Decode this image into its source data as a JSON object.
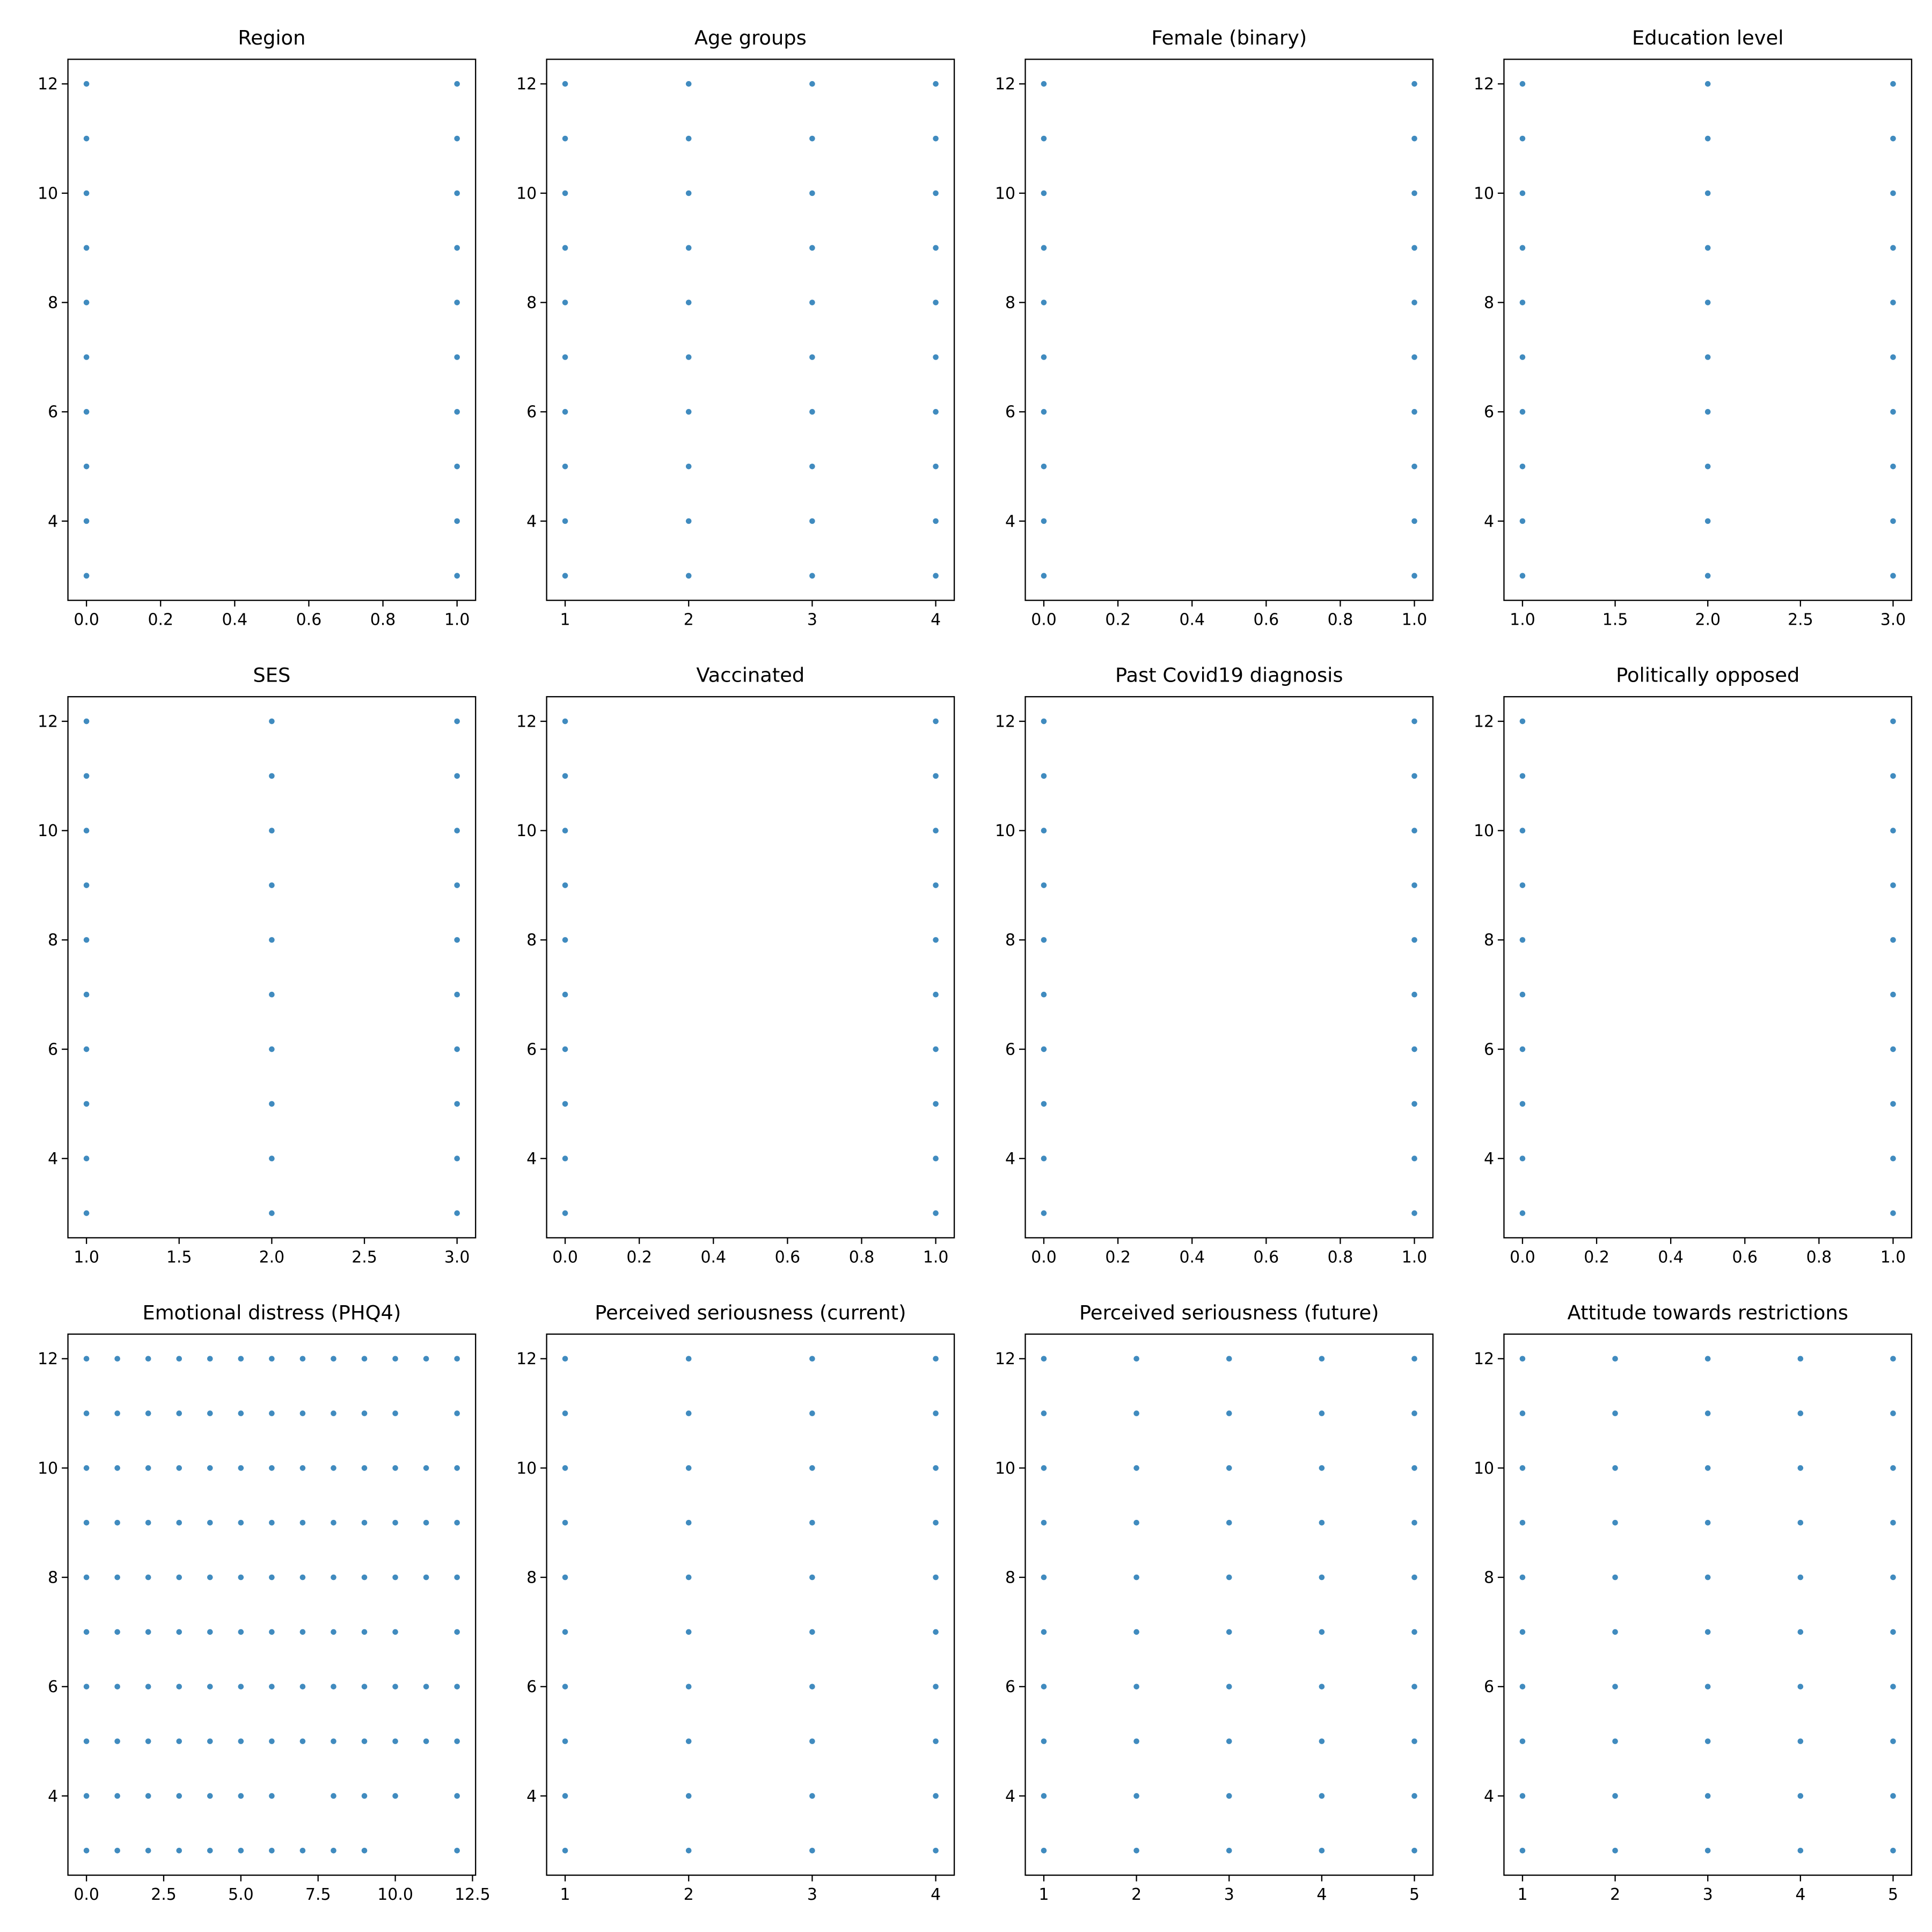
{
  "chart_data": [
    {
      "type": "scatter",
      "title": "Region",
      "color": "#1f77b4",
      "x": [
        0,
        0,
        0,
        0,
        0,
        0,
        0,
        0,
        0,
        0,
        1,
        1,
        1,
        1,
        1,
        1,
        1,
        1,
        1,
        1
      ],
      "y": [
        3,
        4,
        5,
        6,
        7,
        8,
        9,
        10,
        11,
        12,
        3,
        4,
        5,
        6,
        7,
        8,
        9,
        10,
        11,
        12
      ],
      "xlim": [
        -0.05,
        1.05
      ],
      "xticks": [
        {
          "value": 0,
          "label": "0.0"
        },
        {
          "value": 0.2,
          "label": "0.2"
        },
        {
          "value": 0.4,
          "label": "0.4"
        },
        {
          "value": 0.6,
          "label": "0.6"
        },
        {
          "value": 0.8,
          "label": "0.8"
        },
        {
          "value": 1,
          "label": "1.0"
        }
      ],
      "ylim": [
        2.55,
        12.45
      ],
      "yticks": [
        4,
        6,
        8,
        10,
        12
      ]
    },
    {
      "type": "scatter",
      "title": "Age groups",
      "color": "#1f77b4",
      "x": [
        1,
        1,
        1,
        1,
        1,
        1,
        1,
        1,
        1,
        1,
        2,
        2,
        2,
        2,
        2,
        2,
        2,
        2,
        2,
        2,
        3,
        3,
        3,
        3,
        3,
        3,
        3,
        3,
        3,
        3,
        4,
        4,
        4,
        4,
        4,
        4,
        4,
        4,
        4,
        4
      ],
      "y": [
        3,
        4,
        5,
        6,
        7,
        8,
        9,
        10,
        11,
        12,
        3,
        4,
        5,
        6,
        7,
        8,
        9,
        10,
        11,
        12,
        3,
        4,
        5,
        6,
        7,
        8,
        9,
        10,
        11,
        12,
        3,
        4,
        5,
        6,
        7,
        8,
        9,
        10,
        11,
        12
      ],
      "xlim": [
        0.85,
        4.15
      ],
      "xticks": [
        1,
        2,
        3,
        4
      ],
      "ylim": [
        2.55,
        12.45
      ],
      "yticks": [
        4,
        6,
        8,
        10,
        12
      ]
    },
    {
      "type": "scatter",
      "title": "Female (binary)",
      "color": "#1f77b4",
      "x": [
        0,
        0,
        0,
        0,
        0,
        0,
        0,
        0,
        0,
        0,
        1,
        1,
        1,
        1,
        1,
        1,
        1,
        1,
        1,
        1
      ],
      "y": [
        3,
        4,
        5,
        6,
        7,
        8,
        9,
        10,
        11,
        12,
        3,
        4,
        5,
        6,
        7,
        8,
        9,
        10,
        11,
        12
      ],
      "xlim": [
        -0.05,
        1.05
      ],
      "xticks": [
        {
          "value": 0,
          "label": "0.0"
        },
        {
          "value": 0.2,
          "label": "0.2"
        },
        {
          "value": 0.4,
          "label": "0.4"
        },
        {
          "value": 0.6,
          "label": "0.6"
        },
        {
          "value": 0.8,
          "label": "0.8"
        },
        {
          "value": 1,
          "label": "1.0"
        }
      ],
      "ylim": [
        2.55,
        12.45
      ],
      "yticks": [
        4,
        6,
        8,
        10,
        12
      ]
    },
    {
      "type": "scatter",
      "title": "Education level",
      "color": "#1f77b4",
      "x": [
        1,
        1,
        1,
        1,
        1,
        1,
        1,
        1,
        1,
        1,
        2,
        2,
        2,
        2,
        2,
        2,
        2,
        2,
        2,
        2,
        3,
        3,
        3,
        3,
        3,
        3,
        3,
        3,
        3,
        3
      ],
      "y": [
        3,
        4,
        5,
        6,
        7,
        8,
        9,
        10,
        11,
        12,
        3,
        4,
        5,
        6,
        7,
        8,
        9,
        10,
        11,
        12,
        3,
        4,
        5,
        6,
        7,
        8,
        9,
        10,
        11,
        12
      ],
      "xlim": [
        0.9,
        3.1
      ],
      "xticks": [
        {
          "value": 1,
          "label": "1.0"
        },
        {
          "value": 1.5,
          "label": "1.5"
        },
        {
          "value": 2,
          "label": "2.0"
        },
        {
          "value": 2.5,
          "label": "2.5"
        },
        {
          "value": 3,
          "label": "3.0"
        }
      ],
      "ylim": [
        2.55,
        12.45
      ],
      "yticks": [
        4,
        6,
        8,
        10,
        12
      ]
    },
    {
      "type": "scatter",
      "title": "SES",
      "color": "#1f77b4",
      "x": [
        1,
        1,
        1,
        1,
        1,
        1,
        1,
        1,
        1,
        1,
        2,
        2,
        2,
        2,
        2,
        2,
        2,
        2,
        2,
        2,
        3,
        3,
        3,
        3,
        3,
        3,
        3,
        3,
        3,
        3
      ],
      "y": [
        3,
        4,
        5,
        6,
        7,
        8,
        9,
        10,
        11,
        12,
        3,
        4,
        5,
        6,
        7,
        8,
        9,
        10,
        11,
        12,
        3,
        4,
        5,
        6,
        7,
        8,
        9,
        10,
        11,
        12
      ],
      "xlim": [
        0.9,
        3.1
      ],
      "xticks": [
        {
          "value": 1,
          "label": "1.0"
        },
        {
          "value": 1.5,
          "label": "1.5"
        },
        {
          "value": 2,
          "label": "2.0"
        },
        {
          "value": 2.5,
          "label": "2.5"
        },
        {
          "value": 3,
          "label": "3.0"
        }
      ],
      "ylim": [
        2.55,
        12.45
      ],
      "yticks": [
        4,
        6,
        8,
        10,
        12
      ]
    },
    {
      "type": "scatter",
      "title": "Vaccinated",
      "color": "#1f77b4",
      "x": [
        0,
        0,
        0,
        0,
        0,
        0,
        0,
        0,
        0,
        0,
        1,
        1,
        1,
        1,
        1,
        1,
        1,
        1,
        1,
        1
      ],
      "y": [
        3,
        4,
        5,
        6,
        7,
        8,
        9,
        10,
        11,
        12,
        3,
        4,
        5,
        6,
        7,
        8,
        9,
        10,
        11,
        12
      ],
      "xlim": [
        -0.05,
        1.05
      ],
      "xticks": [
        {
          "value": 0,
          "label": "0.0"
        },
        {
          "value": 0.2,
          "label": "0.2"
        },
        {
          "value": 0.4,
          "label": "0.4"
        },
        {
          "value": 0.6,
          "label": "0.6"
        },
        {
          "value": 0.8,
          "label": "0.8"
        },
        {
          "value": 1,
          "label": "1.0"
        }
      ],
      "ylim": [
        2.55,
        12.45
      ],
      "yticks": [
        4,
        6,
        8,
        10,
        12
      ]
    },
    {
      "type": "scatter",
      "title": "Past Covid19 diagnosis",
      "color": "#1f77b4",
      "x": [
        0,
        0,
        0,
        0,
        0,
        0,
        0,
        0,
        0,
        0,
        1,
        1,
        1,
        1,
        1,
        1,
        1,
        1,
        1,
        1
      ],
      "y": [
        3,
        4,
        5,
        6,
        7,
        8,
        9,
        10,
        11,
        12,
        3,
        4,
        5,
        6,
        7,
        8,
        9,
        10,
        11,
        12
      ],
      "xlim": [
        -0.05,
        1.05
      ],
      "xticks": [
        {
          "value": 0,
          "label": "0.0"
        },
        {
          "value": 0.2,
          "label": "0.2"
        },
        {
          "value": 0.4,
          "label": "0.4"
        },
        {
          "value": 0.6,
          "label": "0.6"
        },
        {
          "value": 0.8,
          "label": "0.8"
        },
        {
          "value": 1,
          "label": "1.0"
        }
      ],
      "ylim": [
        2.55,
        12.45
      ],
      "yticks": [
        4,
        6,
        8,
        10,
        12
      ]
    },
    {
      "type": "scatter",
      "title": "Politically opposed",
      "color": "#1f77b4",
      "x": [
        0,
        0,
        0,
        0,
        0,
        0,
        0,
        0,
        0,
        0,
        1,
        1,
        1,
        1,
        1,
        1,
        1,
        1,
        1,
        1
      ],
      "y": [
        3,
        4,
        5,
        6,
        7,
        8,
        9,
        10,
        11,
        12,
        3,
        4,
        5,
        6,
        7,
        8,
        9,
        10,
        11,
        12
      ],
      "xlim": [
        -0.05,
        1.05
      ],
      "xticks": [
        {
          "value": 0,
          "label": "0.0"
        },
        {
          "value": 0.2,
          "label": "0.2"
        },
        {
          "value": 0.4,
          "label": "0.4"
        },
        {
          "value": 0.6,
          "label": "0.6"
        },
        {
          "value": 0.8,
          "label": "0.8"
        },
        {
          "value": 1,
          "label": "1.0"
        }
      ],
      "ylim": [
        2.55,
        12.45
      ],
      "yticks": [
        4,
        6,
        8,
        10,
        12
      ]
    },
    {
      "type": "scatter",
      "title": "Emotional distress (PHQ4)",
      "color": "#1f77b4",
      "x": [
        0,
        1,
        2,
        3,
        4,
        5,
        6,
        7,
        8,
        9,
        12,
        0,
        1,
        2,
        3,
        4,
        5,
        6,
        8,
        9,
        10,
        12,
        0,
        1,
        2,
        3,
        4,
        5,
        6,
        7,
        8,
        9,
        10,
        11,
        12,
        0,
        1,
        2,
        3,
        4,
        5,
        6,
        7,
        8,
        9,
        10,
        11,
        12,
        0,
        1,
        2,
        3,
        4,
        5,
        6,
        7,
        8,
        9,
        10,
        12,
        0,
        1,
        2,
        3,
        4,
        5,
        6,
        7,
        8,
        9,
        10,
        11,
        12,
        0,
        1,
        2,
        3,
        4,
        5,
        6,
        7,
        8,
        9,
        10,
        11,
        12,
        0,
        1,
        2,
        3,
        4,
        5,
        6,
        7,
        8,
        9,
        10,
        11,
        12,
        0,
        1,
        2,
        3,
        4,
        5,
        6,
        7,
        8,
        9,
        10,
        12,
        0,
        1,
        2,
        3,
        4,
        5,
        6,
        7,
        8,
        9,
        10,
        11,
        12
      ],
      "y": [
        3,
        3,
        3,
        3,
        3,
        3,
        3,
        3,
        3,
        3,
        3,
        4,
        4,
        4,
        4,
        4,
        4,
        4,
        4,
        4,
        4,
        4,
        5,
        5,
        5,
        5,
        5,
        5,
        5,
        5,
        5,
        5,
        5,
        5,
        5,
        6,
        6,
        6,
        6,
        6,
        6,
        6,
        6,
        6,
        6,
        6,
        6,
        6,
        7,
        7,
        7,
        7,
        7,
        7,
        7,
        7,
        7,
        7,
        7,
        7,
        8,
        8,
        8,
        8,
        8,
        8,
        8,
        8,
        8,
        8,
        8,
        8,
        8,
        9,
        9,
        9,
        9,
        9,
        9,
        9,
        9,
        9,
        9,
        9,
        9,
        9,
        10,
        10,
        10,
        10,
        10,
        10,
        10,
        10,
        10,
        10,
        10,
        10,
        10,
        11,
        11,
        11,
        11,
        11,
        11,
        11,
        11,
        11,
        11,
        11,
        11,
        12,
        12,
        12,
        12,
        12,
        12,
        12,
        12,
        12,
        12,
        12,
        12,
        12
      ],
      "xlim": [
        -0.6,
        12.6
      ],
      "xticks": [
        {
          "value": 0,
          "label": "0.0"
        },
        {
          "value": 2.5,
          "label": "2.5"
        },
        {
          "value": 5,
          "label": "5.0"
        },
        {
          "value": 7.5,
          "label": "7.5"
        },
        {
          "value": 10,
          "label": "10.0"
        },
        {
          "value": 12.5,
          "label": "12.5"
        }
      ],
      "ylim": [
        2.55,
        12.45
      ],
      "yticks": [
        4,
        6,
        8,
        10,
        12
      ]
    },
    {
      "type": "scatter",
      "title": "Perceived seriousness (current)",
      "color": "#1f77b4",
      "x": [
        1,
        1,
        1,
        1,
        1,
        1,
        1,
        1,
        1,
        1,
        2,
        2,
        2,
        2,
        2,
        2,
        2,
        2,
        2,
        2,
        3,
        3,
        3,
        3,
        3,
        3,
        3,
        3,
        3,
        3,
        4,
        4,
        4,
        4,
        4,
        4,
        4,
        4,
        4,
        4
      ],
      "y": [
        3,
        4,
        5,
        6,
        7,
        8,
        9,
        10,
        11,
        12,
        3,
        4,
        5,
        6,
        7,
        8,
        9,
        10,
        11,
        12,
        3,
        4,
        5,
        6,
        7,
        8,
        9,
        10,
        11,
        12,
        3,
        4,
        5,
        6,
        7,
        8,
        9,
        10,
        11,
        12
      ],
      "xlim": [
        0.85,
        4.15
      ],
      "xticks": [
        1,
        2,
        3,
        4
      ],
      "ylim": [
        2.55,
        12.45
      ],
      "yticks": [
        4,
        6,
        8,
        10,
        12
      ]
    },
    {
      "type": "scatter",
      "title": "Perceived seriousness (future)",
      "color": "#1f77b4",
      "x": [
        1,
        1,
        1,
        1,
        1,
        1,
        1,
        1,
        1,
        1,
        2,
        2,
        2,
        2,
        2,
        2,
        2,
        2,
        2,
        2,
        3,
        3,
        3,
        3,
        3,
        3,
        3,
        3,
        3,
        3,
        4,
        4,
        4,
        4,
        4,
        4,
        4,
        4,
        4,
        4,
        5,
        5,
        5,
        5,
        5,
        5,
        5,
        5,
        5,
        5
      ],
      "y": [
        3,
        4,
        5,
        6,
        7,
        8,
        9,
        10,
        11,
        12,
        3,
        4,
        5,
        6,
        7,
        8,
        9,
        10,
        11,
        12,
        3,
        4,
        5,
        6,
        7,
        8,
        9,
        10,
        11,
        12,
        3,
        4,
        5,
        6,
        7,
        8,
        9,
        10,
        11,
        12,
        3,
        4,
        5,
        6,
        7,
        8,
        9,
        10,
        11,
        12
      ],
      "xlim": [
        0.8,
        5.2
      ],
      "xticks": [
        1,
        2,
        3,
        4,
        5
      ],
      "ylim": [
        2.55,
        12.45
      ],
      "yticks": [
        4,
        6,
        8,
        10,
        12
      ]
    },
    {
      "type": "scatter",
      "title": "Attitude towards restrictions",
      "color": "#1f77b4",
      "x": [
        1,
        1,
        1,
        1,
        1,
        1,
        1,
        1,
        1,
        1,
        2,
        2,
        2,
        2,
        2,
        2,
        2,
        2,
        2,
        2,
        3,
        3,
        3,
        3,
        3,
        3,
        3,
        3,
        3,
        3,
        4,
        4,
        4,
        4,
        4,
        4,
        4,
        4,
        4,
        4,
        5,
        5,
        5,
        5,
        5,
        5,
        5,
        5,
        5,
        5
      ],
      "y": [
        3,
        4,
        5,
        6,
        7,
        8,
        9,
        10,
        11,
        12,
        3,
        4,
        5,
        6,
        7,
        8,
        9,
        10,
        11,
        12,
        3,
        4,
        5,
        6,
        7,
        8,
        9,
        10,
        11,
        12,
        3,
        4,
        5,
        6,
        7,
        8,
        9,
        10,
        11,
        12,
        3,
        4,
        5,
        6,
        7,
        8,
        9,
        10,
        11,
        12
      ],
      "xlim": [
        0.8,
        5.2
      ],
      "xticks": [
        1,
        2,
        3,
        4,
        5
      ],
      "ylim": [
        2.55,
        12.45
      ],
      "yticks": [
        4,
        6,
        8,
        10,
        12
      ]
    }
  ]
}
